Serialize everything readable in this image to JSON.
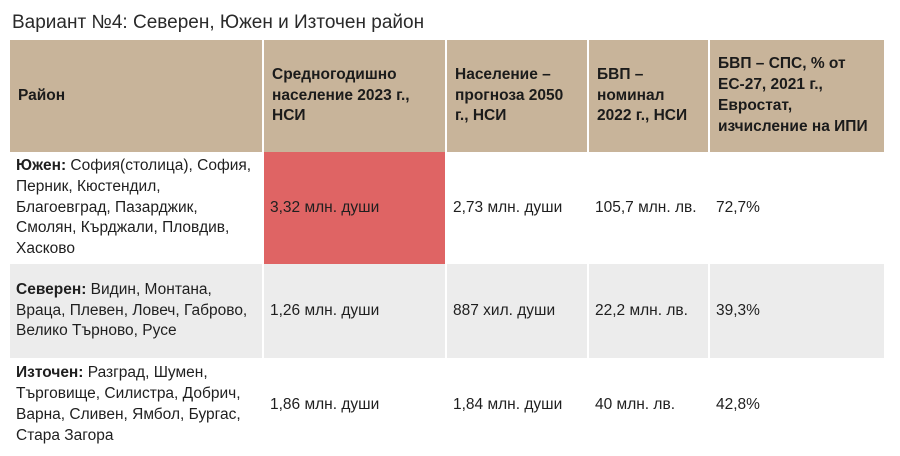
{
  "caption": "Вариант №4: Северен, Южен и Източен район",
  "table": {
    "headers": [
      "Район",
      "Средногодишно население 2023 г., НСИ",
      "Население – прогноза 2050 г., НСИ",
      "БВП – номинал 2022 г., НСИ",
      "БВП – СПС, % от ЕС-27, 2021 г., Евростат, изчисление на ИПИ"
    ],
    "rows": [
      {
        "region": "Южен:",
        "districts": " София(столица), София, Перник, Кюстендил, Благоевград, Пазарджик, Смолян, Кърджали, Пловдив, Хасково",
        "population_2023": "3,32 млн. души",
        "population_2050": "2,73 млн. души",
        "gdp_nominal_2022": "105,7 млн. лв.",
        "gdp_pps_2021": "72,7%"
      },
      {
        "region": "Северен:",
        "districts": " Видин, Монтана, Враца, Плевен, Ловеч, Габрово, Велико Търново, Русе",
        "population_2023": "1,26 млн. души",
        "population_2050": "887 хил. души",
        "gdp_nominal_2022": "22,2 млн. лв.",
        "gdp_pps_2021": "39,3%"
      },
      {
        "region": "Източен:",
        "districts": " Разград, Шумен, Търговище, Силистра, Добрич, Варна, Сливен, Ямбол, Бургас, Стара Загора",
        "population_2023": "1,86 млн. души",
        "population_2050": "1,84 млн. души",
        "gdp_nominal_2022": "40 млн. лв.",
        "gdp_pps_2021": "42,8%"
      }
    ]
  },
  "colors": {
    "header_background": "#c8b49a",
    "highlight": "#df6464",
    "alternate_row": "#ececec"
  }
}
